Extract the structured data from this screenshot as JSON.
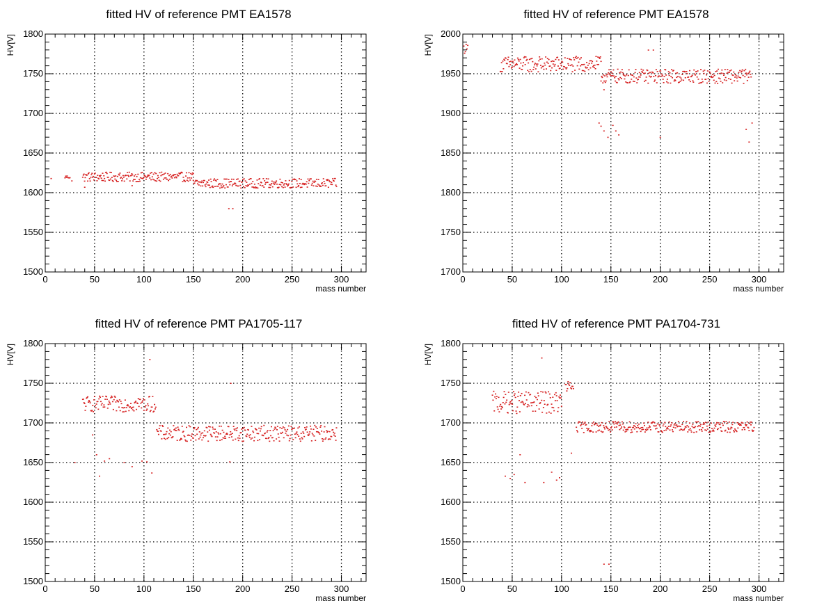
{
  "chart_data": [
    {
      "type": "scatter",
      "title": "fitted HV of reference PMT EA1578",
      "xlabel": "mass number",
      "ylabel": "HV[V]",
      "xlim": [
        0,
        325
      ],
      "ylim": [
        1500,
        1800
      ],
      "xticks": [
        "0",
        "50",
        "100",
        "150",
        "200",
        "250",
        "300"
      ],
      "yticks": [
        "1500",
        "1550",
        "1600",
        "1650",
        "1700",
        "1750",
        "1800"
      ],
      "grid": true,
      "marker_color": "#d62020",
      "segments": [
        {
          "x": [
            6,
            6
          ],
          "base": 1618,
          "amp": 0
        },
        {
          "x": [
            20,
            25
          ],
          "base": 1620,
          "amp": 2
        },
        {
          "x": [
            38,
            150
          ],
          "base": 1620,
          "amp": 6
        },
        {
          "x": [
            150,
            295
          ],
          "base": 1612,
          "amp": 6
        }
      ],
      "outliers": [
        [
          40,
          1607
        ],
        [
          88,
          1609
        ],
        [
          186,
          1580
        ],
        [
          190,
          1580
        ],
        [
          27,
          1615
        ]
      ]
    },
    {
      "type": "scatter",
      "title": "fitted HV of reference PMT EA1578",
      "xlabel": "mass number",
      "ylabel": "HV[V]",
      "xlim": [
        0,
        325
      ],
      "ylim": [
        1700,
        2000
      ],
      "xticks": [
        "0",
        "50",
        "100",
        "150",
        "200",
        "250",
        "300"
      ],
      "yticks": [
        "1700",
        "1750",
        "1800",
        "1850",
        "1900",
        "1950",
        "2000"
      ],
      "grid": true,
      "marker_color": "#d62020",
      "segments": [
        {
          "x": [
            1,
            5
          ],
          "base": 1982,
          "amp": 6
        },
        {
          "x": [
            38,
            140
          ],
          "base": 1962,
          "amp": 10
        },
        {
          "x": [
            140,
            292
          ],
          "base": 1947,
          "amp": 9
        }
      ],
      "outliers": [
        [
          138,
          1888
        ],
        [
          140,
          1884
        ],
        [
          143,
          1878
        ],
        [
          147,
          1870
        ],
        [
          152,
          1885
        ],
        [
          155,
          1878
        ],
        [
          158,
          1873
        ],
        [
          188,
          1980
        ],
        [
          193,
          1980
        ],
        [
          200,
          1870
        ],
        [
          143,
          1930
        ],
        [
          287,
          1880
        ],
        [
          290,
          1864
        ],
        [
          293,
          1888
        ]
      ]
    },
    {
      "type": "scatter",
      "title": "fitted HV of reference PMT PA1705-117",
      "xlabel": "mass number",
      "ylabel": "HV[V]",
      "xlim": [
        0,
        325
      ],
      "ylim": [
        1500,
        1800
      ],
      "xticks": [
        "0",
        "50",
        "100",
        "150",
        "200",
        "250",
        "300"
      ],
      "yticks": [
        "1500",
        "1550",
        "1600",
        "1650",
        "1700",
        "1750",
        "1800"
      ],
      "grid": true,
      "marker_color": "#d62020",
      "segments": [
        {
          "x": [
            38,
            112
          ],
          "base": 1724,
          "amp": 10
        },
        {
          "x": [
            113,
            295
          ],
          "base": 1687,
          "amp": 10
        }
      ],
      "outliers": [
        [
          30,
          1650
        ],
        [
          48,
          1685
        ],
        [
          52,
          1660
        ],
        [
          55,
          1633
        ],
        [
          60,
          1652
        ],
        [
          65,
          1655
        ],
        [
          80,
          1650
        ],
        [
          88,
          1645
        ],
        [
          98,
          1652
        ],
        [
          103,
          1651
        ],
        [
          106,
          1780
        ],
        [
          108,
          1637
        ],
        [
          187,
          1651
        ],
        [
          188,
          1750
        ]
      ]
    },
    {
      "type": "scatter",
      "title": "fitted HV of reference PMT PA1704-731",
      "xlabel": "mass number",
      "ylabel": "HV[V]",
      "xlim": [
        0,
        325
      ],
      "ylim": [
        1500,
        1800
      ],
      "xticks": [
        "0",
        "50",
        "100",
        "150",
        "200",
        "250",
        "300"
      ],
      "yticks": [
        "1500",
        "1550",
        "1600",
        "1650",
        "1700",
        "1750",
        "1800"
      ],
      "grid": true,
      "marker_color": "#d62020",
      "segments": [
        {
          "x": [
            30,
            100
          ],
          "base": 1726,
          "amp": 14
        },
        {
          "x": [
            104,
            112
          ],
          "base": 1745,
          "amp": 8
        },
        {
          "x": [
            115,
            295
          ],
          "base": 1695,
          "amp": 7
        }
      ],
      "outliers": [
        [
          43,
          1633
        ],
        [
          48,
          1630
        ],
        [
          52,
          1635
        ],
        [
          58,
          1660
        ],
        [
          63,
          1625
        ],
        [
          80,
          1782
        ],
        [
          82,
          1625
        ],
        [
          90,
          1638
        ],
        [
          95,
          1628
        ],
        [
          98,
          1631
        ],
        [
          110,
          1662
        ],
        [
          143,
          1522
        ],
        [
          148,
          1522
        ]
      ]
    }
  ]
}
